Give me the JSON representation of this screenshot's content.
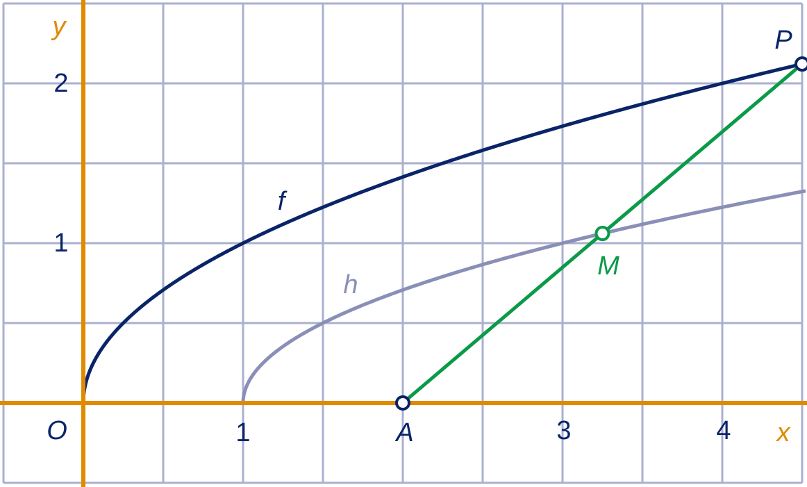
{
  "axes": {
    "x_label": "x",
    "y_label": "y",
    "origin": "O"
  },
  "x_ticks": [
    "1",
    "3",
    "4"
  ],
  "y_ticks": [
    "1",
    "2"
  ],
  "points": {
    "A": "A",
    "M": "M",
    "P": "P"
  },
  "curves": {
    "f": "f",
    "h": "h"
  }
}
